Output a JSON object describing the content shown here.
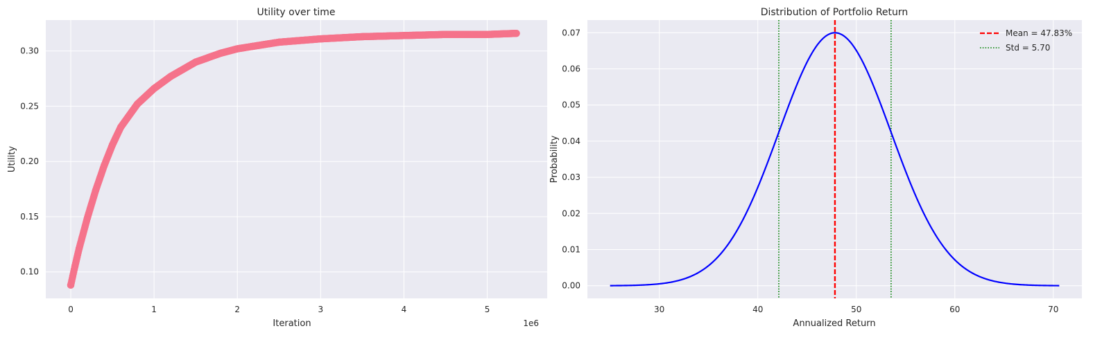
{
  "chart_data": [
    {
      "type": "scatter",
      "title": "Utility over time",
      "xlabel": "Iteration",
      "ylabel": "Utility",
      "x_offset_label": "1e6",
      "xlim": [
        -0.3,
        5.72
      ],
      "ylim": [
        0.076,
        0.328
      ],
      "x_ticks": [
        0,
        1,
        2,
        3,
        4,
        5
      ],
      "x_tick_labels": [
        "0",
        "1",
        "2",
        "3",
        "4",
        "5"
      ],
      "y_ticks": [
        0.1,
        0.15,
        0.2,
        0.25,
        0.3
      ],
      "y_tick_labels": [
        "0.10",
        "0.15",
        "0.20",
        "0.25",
        "0.30"
      ],
      "grid": true,
      "color": "#f5738b",
      "x_units": "1e6 iterations",
      "series": [
        {
          "x": [
            0,
            0.05,
            0.1,
            0.2,
            0.3,
            0.4,
            0.5,
            0.6,
            0.8,
            1.0,
            1.2,
            1.5,
            1.8,
            2.0,
            2.5,
            3.0,
            3.5,
            4.0,
            4.5,
            5.0,
            5.35
          ],
          "y": [
            0.088,
            0.105,
            0.121,
            0.149,
            0.174,
            0.196,
            0.215,
            0.231,
            0.252,
            0.266,
            0.277,
            0.29,
            0.298,
            0.302,
            0.308,
            0.311,
            0.313,
            0.314,
            0.315,
            0.315,
            0.316
          ]
        }
      ]
    },
    {
      "type": "line",
      "title": "Distribution of Portfolio Return",
      "xlabel": "Annualized Return",
      "ylabel": "Probability",
      "xlim": [
        22.7,
        72.9
      ],
      "ylim": [
        -0.0035,
        0.0735
      ],
      "x_ticks": [
        30,
        40,
        50,
        60,
        70
      ],
      "x_tick_labels": [
        "30",
        "40",
        "50",
        "60",
        "70"
      ],
      "y_ticks": [
        0.0,
        0.01,
        0.02,
        0.03,
        0.04,
        0.05,
        0.06,
        0.07
      ],
      "y_tick_labels": [
        "0.00",
        "0.01",
        "0.02",
        "0.03",
        "0.04",
        "0.05",
        "0.06",
        "0.07"
      ],
      "grid": true,
      "legend_position": "top-right",
      "mean": 47.83,
      "std": 5.7,
      "x_range": [
        25.0,
        70.6
      ],
      "curve_color": "#0000ff",
      "mean_color": "#ff0000",
      "std_color": "#008000",
      "legend": [
        {
          "label": "Mean = 47.83%",
          "style": "dashed",
          "color": "#ff0000"
        },
        {
          "label": "Std = 5.70",
          "style": "dotted",
          "color": "#008000"
        }
      ]
    }
  ]
}
